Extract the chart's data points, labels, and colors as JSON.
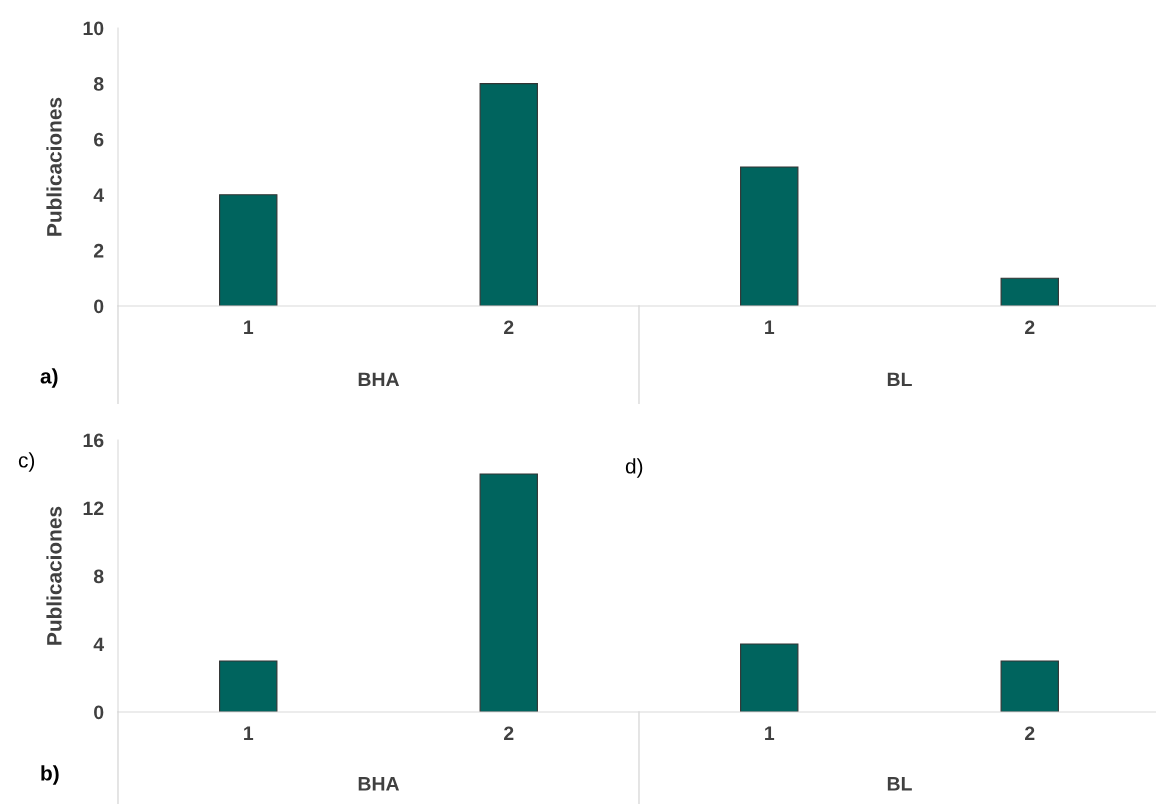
{
  "chart_data": [
    {
      "type": "bar",
      "ylabel": "Publicaciones",
      "categories": [
        "1",
        "2",
        "1",
        "2"
      ],
      "values": [
        4,
        8,
        5,
        1
      ],
      "color": "#00645e",
      "ylim": [
        0,
        10
      ],
      "yticks": [
        0,
        2,
        4,
        6,
        8,
        10
      ],
      "grid": false,
      "legend": false,
      "annotations": [
        "a)",
        "BHA",
        "BL"
      ]
    },
    {
      "type": "bar",
      "ylabel": "Publicaciones",
      "categories": [
        "1",
        "2",
        "1",
        "2"
      ],
      "values": [
        3,
        14,
        4,
        3
      ],
      "color": "#00645e",
      "ylim": [
        0,
        16
      ],
      "yticks": [
        0,
        4,
        8,
        12,
        16
      ],
      "grid": false,
      "legend": false,
      "annotations": [
        "b)",
        "c)",
        "d)",
        "BHA",
        "BL"
      ]
    }
  ]
}
